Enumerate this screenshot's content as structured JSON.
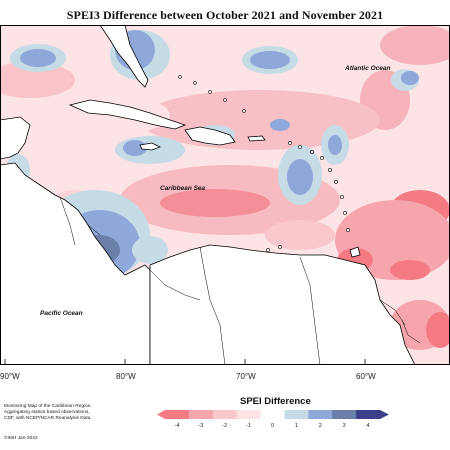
{
  "title": "SPEI3 Difference between October 2021 and November 2021",
  "labels": {
    "atlantic": "Atlantic Ocean",
    "caribbean": "Caribbean Sea",
    "pacific": "Pacific Ocean"
  },
  "longitudes": [
    "90°W",
    "80°W",
    "70°W",
    "60°W"
  ],
  "legend": {
    "title": "SPEI Difference",
    "ticks": [
      "-4",
      "-3",
      "-2",
      "-1",
      "0",
      "1",
      "2",
      "3",
      "4"
    ],
    "colors": [
      "#f47b84",
      "#f7a5ac",
      "#fac7cc",
      "#fde3e6",
      "#ffffff",
      "#c5dbe6",
      "#8fa8d9",
      "#6b80a8",
      "#3b3f8a"
    ]
  },
  "credits": {
    "line1": "Monitoring Map of the Caribbean Region.",
    "line2": "Aggregating station based observations,",
    "line3": "CDF, with NCEP/NCAR Reanalysis Data.",
    "date": "©IMH Jan-2022"
  }
}
